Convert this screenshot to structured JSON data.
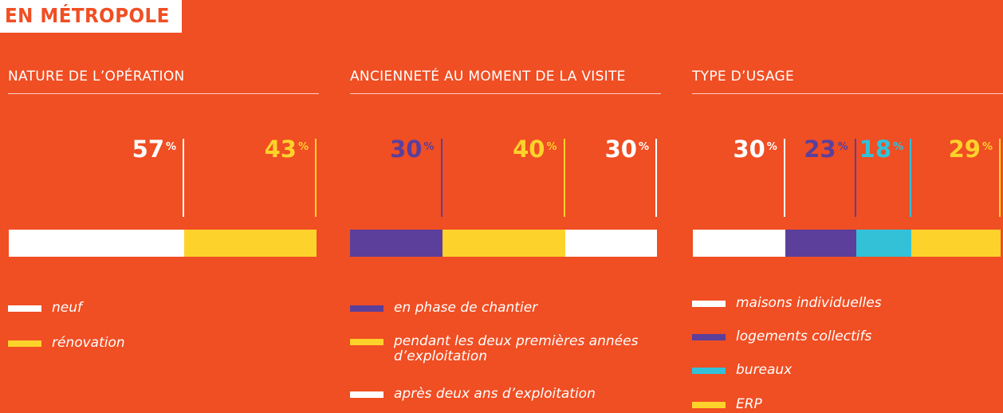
{
  "header": {
    "title": "EN MÉTROPOLE"
  },
  "percent_sign": "%",
  "colors": {
    "background": "#f04e23",
    "white": "#ffffff",
    "yellow": "#fdd22b",
    "purple": "#5b3f9b",
    "cyan": "#33c1d8"
  },
  "chart_data": [
    {
      "type": "bar",
      "subtype": "stacked-100",
      "title": "NATURE DE L’OPÉRATION",
      "series": [
        {
          "name": "neuf",
          "value": 57,
          "color": "#ffffff"
        },
        {
          "name": "rénovation",
          "value": 43,
          "color": "#fdd22b"
        }
      ],
      "labels": [
        "57",
        "43"
      ]
    },
    {
      "type": "bar",
      "subtype": "stacked-100",
      "title": "ANCIENNETÉ AU MOMENT DE LA VISITE",
      "series": [
        {
          "name": "en phase de chantier",
          "value": 30,
          "color": "#5b3f9b"
        },
        {
          "name": "pendant les deux premières années d’exploitation",
          "value": 40,
          "color": "#fdd22b"
        },
        {
          "name": "après deux ans d’exploitation",
          "value": 30,
          "color": "#ffffff"
        }
      ],
      "labels": [
        "30",
        "40",
        "30"
      ]
    },
    {
      "type": "bar",
      "subtype": "stacked-100",
      "title": "TYPE D’USAGE",
      "series": [
        {
          "name": "maisons individuelles",
          "value": 30,
          "color": "#ffffff"
        },
        {
          "name": "logements collectifs",
          "value": 23,
          "color": "#5b3f9b"
        },
        {
          "name": "bureaux",
          "value": 18,
          "color": "#33c1d8"
        },
        {
          "name": "ERP",
          "value": 29,
          "color": "#fdd22b"
        }
      ],
      "labels": [
        "30",
        "23",
        "18",
        "29"
      ]
    }
  ]
}
